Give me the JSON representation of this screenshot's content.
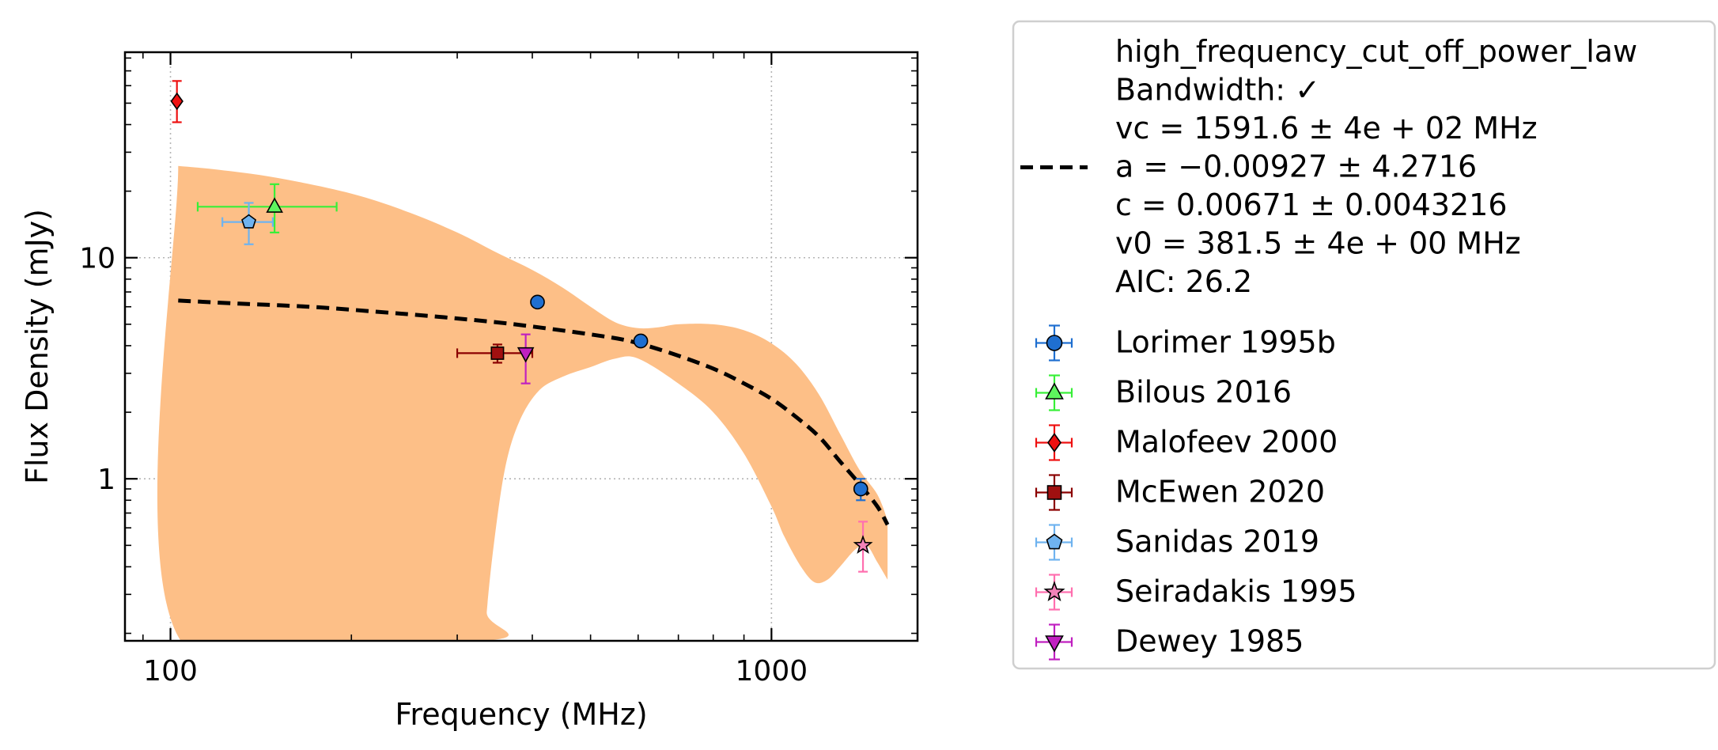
{
  "chart_data": {
    "type": "scatter",
    "title": "",
    "xlabel": "Frequency (MHz)",
    "ylabel": "Flux Density (mJy)",
    "xscale": "log",
    "yscale": "log",
    "xlim": [
      84,
      1750
    ],
    "ylim": [
      0.185,
      85
    ],
    "x_ticks": [
      {
        "value": 100,
        "label": "100"
      },
      {
        "value": 1000,
        "label": "1000"
      }
    ],
    "y_ticks": [
      {
        "value": 1,
        "label": "1"
      },
      {
        "value": 10,
        "label": "10"
      }
    ],
    "grid": true,
    "legend_position": "outside-right",
    "fit": {
      "model_name": "high_frequency_cut_off_power_law",
      "legend_lines": [
        "high_frequency_cut_off_power_law",
        "Bandwidth: ✓",
        "vc = 1591.6 ± 4e + 02 MHz",
        "a = −0.00927 ± 4.2716",
        "c = 0.00671 ± 0.0043216",
        "v0 = 381.5 ± 4e + 00 MHz",
        "AIC: 26.2"
      ],
      "line_color": "#000000",
      "band_color": "#fdbf87",
      "curve": [
        [
          103,
          6.4
        ],
        [
          130,
          6.2
        ],
        [
          170,
          6.0
        ],
        [
          220,
          5.7
        ],
        [
          280,
          5.4
        ],
        [
          350,
          5.1
        ],
        [
          420,
          4.8
        ],
        [
          500,
          4.5
        ],
        [
          580,
          4.2
        ],
        [
          680,
          3.7
        ],
        [
          800,
          3.15
        ],
        [
          900,
          2.7
        ],
        [
          1000,
          2.3
        ],
        [
          1100,
          1.9
        ],
        [
          1200,
          1.55
        ],
        [
          1300,
          1.2
        ],
        [
          1400,
          0.95
        ],
        [
          1500,
          0.75
        ],
        [
          1560,
          0.62
        ]
      ],
      "band_upper": [
        [
          103,
          26
        ],
        [
          120,
          25
        ],
        [
          150,
          23
        ],
        [
          200,
          19.5
        ],
        [
          250,
          16
        ],
        [
          300,
          13
        ],
        [
          350,
          10.5
        ],
        [
          400,
          8.8
        ],
        [
          450,
          7.3
        ],
        [
          500,
          6.0
        ],
        [
          550,
          5.1
        ],
        [
          600,
          4.8
        ],
        [
          650,
          4.85
        ],
        [
          700,
          5.0
        ],
        [
          800,
          5.0
        ],
        [
          900,
          4.7
        ],
        [
          1000,
          4.1
        ],
        [
          1100,
          3.3
        ],
        [
          1200,
          2.4
        ],
        [
          1300,
          1.6
        ],
        [
          1400,
          1.1
        ],
        [
          1500,
          0.85
        ],
        [
          1560,
          0.65
        ]
      ],
      "band_lower": [
        [
          1560,
          0.35
        ],
        [
          1500,
          0.42
        ],
        [
          1440,
          0.5
        ],
        [
          1380,
          0.48
        ],
        [
          1300,
          0.4
        ],
        [
          1240,
          0.35
        ],
        [
          1180,
          0.34
        ],
        [
          1120,
          0.4
        ],
        [
          1050,
          0.55
        ],
        [
          1000,
          0.75
        ],
        [
          900,
          1.3
        ],
        [
          800,
          2.0
        ],
        [
          700,
          2.7
        ],
        [
          600,
          3.5
        ],
        [
          550,
          3.5
        ],
        [
          500,
          3.2
        ],
        [
          450,
          2.9
        ],
        [
          410,
          2.5
        ],
        [
          380,
          1.8
        ],
        [
          360,
          1.1
        ],
        [
          345,
          0.5
        ],
        [
          336,
          0.25
        ],
        [
          335,
          0.185
        ],
        [
          104,
          0.185
        ],
        [
          103,
          26
        ]
      ]
    },
    "series": [
      {
        "name": "Lorimer 1995b",
        "marker": "circle",
        "color": "#1f6fd0",
        "err_color": "#1f6fd0",
        "points": [
          {
            "x": 408,
            "y": 6.3
          },
          {
            "x": 606,
            "y": 4.2
          },
          {
            "x": 1408,
            "y": 0.9,
            "yerr": [
              0.1,
              0.1
            ]
          }
        ]
      },
      {
        "name": "Bilous 2016",
        "marker": "triangle",
        "color": "#5ef55e",
        "err_color": "#38ef38",
        "points": [
          {
            "x": 149,
            "y": 17.0,
            "xerr": [
              38,
              40
            ],
            "yerr": [
              4.0,
              4.5
            ]
          }
        ]
      },
      {
        "name": "Malofeev 2000",
        "marker": "diamond",
        "color": "#ee1111",
        "err_color": "#ee1111",
        "points": [
          {
            "x": 102.5,
            "y": 51.0,
            "yerr": [
              10,
              12
            ]
          }
        ]
      },
      {
        "name": "McEwen 2020",
        "marker": "square",
        "color": "#a01010",
        "err_color": "#8b0000",
        "points": [
          {
            "x": 350,
            "y": 3.7,
            "xerr": [
              50,
              50
            ],
            "yerr": [
              0.35,
              0.35
            ]
          }
        ]
      },
      {
        "name": "Sanidas 2019",
        "marker": "pentagon",
        "color": "#6fb3ef",
        "err_color": "#6fb3ef",
        "points": [
          {
            "x": 135,
            "y": 14.5,
            "xerr": [
              13,
              13
            ],
            "yerr": [
              3.0,
              3.2
            ]
          }
        ]
      },
      {
        "name": "Seiradakis 1995",
        "marker": "star",
        "color": "#f282b8",
        "err_color": "#ff6faf",
        "points": [
          {
            "x": 1420,
            "y": 0.5,
            "yerr": [
              0.12,
              0.14
            ]
          }
        ]
      },
      {
        "name": "Dewey 1985",
        "marker": "triangle_down",
        "color": "#c020c0",
        "err_color": "#c020c0",
        "points": [
          {
            "x": 390,
            "y": 3.7,
            "yerr": [
              1.0,
              0.8
            ]
          }
        ]
      }
    ]
  }
}
